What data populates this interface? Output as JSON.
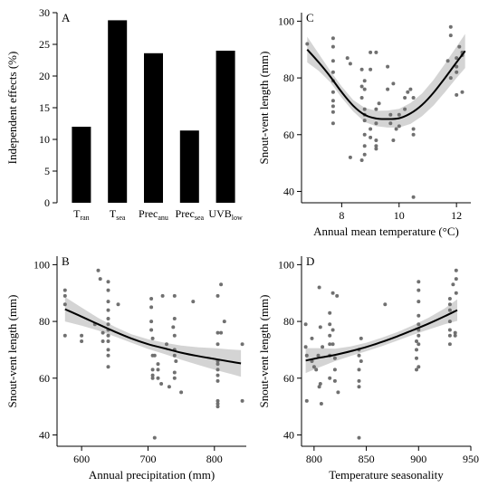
{
  "chart_data": [
    {
      "id": "A",
      "panel_label": "A",
      "type": "bar",
      "ylabel": "Independent effects (%)",
      "ylim": [
        0,
        30
      ],
      "yticks": [
        0,
        5,
        10,
        15,
        20,
        25,
        30
      ],
      "categories": [
        {
          "base": "T",
          "sub": "ran"
        },
        {
          "base": "T",
          "sub": "sea"
        },
        {
          "base": "Prec",
          "sub": "anu"
        },
        {
          "base": "Prec",
          "sub": "sea"
        },
        {
          "base": "UVB",
          "sub": "low"
        }
      ],
      "values": [
        12.0,
        28.8,
        23.6,
        11.4,
        24.0
      ]
    },
    {
      "id": "C",
      "panel_label": "C",
      "type": "scatter",
      "xlabel": "Annual mean temperature (°C)",
      "ylabel": "Snout-vent length (mm)",
      "xlim": [
        6.6,
        12.5
      ],
      "ylim": [
        36,
        103
      ],
      "xticks": [
        8,
        10,
        12
      ],
      "yticks": [
        40,
        60,
        80,
        100
      ],
      "points": [
        [
          6.8,
          92
        ],
        [
          7.7,
          94
        ],
        [
          7.7,
          91
        ],
        [
          7.7,
          86
        ],
        [
          7.7,
          82
        ],
        [
          7.7,
          79
        ],
        [
          7.7,
          75
        ],
        [
          7.7,
          72
        ],
        [
          7.7,
          70
        ],
        [
          7.7,
          68
        ],
        [
          7.7,
          64
        ],
        [
          8.2,
          87
        ],
        [
          8.3,
          85
        ],
        [
          8.3,
          52
        ],
        [
          8.7,
          83
        ],
        [
          8.7,
          77
        ],
        [
          8.7,
          73
        ],
        [
          8.7,
          51
        ],
        [
          8.8,
          79
        ],
        [
          8.8,
          76
        ],
        [
          8.8,
          69
        ],
        [
          8.8,
          67
        ],
        [
          8.8,
          65
        ],
        [
          8.8,
          60
        ],
        [
          8.8,
          56
        ],
        [
          8.8,
          53
        ],
        [
          9.0,
          89
        ],
        [
          9.0,
          83
        ],
        [
          9.0,
          62
        ],
        [
          9.0,
          59
        ],
        [
          9.2,
          89
        ],
        [
          9.2,
          69
        ],
        [
          9.2,
          64
        ],
        [
          9.2,
          58
        ],
        [
          9.2,
          56
        ],
        [
          9.2,
          55
        ],
        [
          9.3,
          71
        ],
        [
          9.6,
          84
        ],
        [
          9.6,
          76
        ],
        [
          9.7,
          67
        ],
        [
          9.7,
          64
        ],
        [
          9.8,
          78
        ],
        [
          9.8,
          58
        ],
        [
          9.9,
          62
        ],
        [
          10.0,
          67
        ],
        [
          10.0,
          63
        ],
        [
          10.2,
          73
        ],
        [
          10.2,
          69
        ],
        [
          10.3,
          75
        ],
        [
          10.4,
          76
        ],
        [
          10.5,
          73
        ],
        [
          10.5,
          62
        ],
        [
          10.5,
          60
        ],
        [
          10.5,
          38
        ],
        [
          11.7,
          86
        ],
        [
          11.8,
          98
        ],
        [
          11.8,
          95
        ],
        [
          11.8,
          80
        ],
        [
          12.0,
          87
        ],
        [
          12.0,
          84
        ],
        [
          12.0,
          82
        ],
        [
          12.0,
          74
        ],
        [
          12.1,
          91
        ],
        [
          12.2,
          89
        ],
        [
          12.2,
          88
        ],
        [
          12.2,
          75
        ]
      ],
      "fit": {
        "x": [
          6.8,
          7.2,
          7.6,
          8.0,
          8.4,
          8.8,
          9.2,
          9.6,
          10.0,
          10.4,
          10.8,
          11.2,
          11.6,
          12.0,
          12.3
        ],
        "y": [
          90.0,
          85.5,
          80.5,
          75.0,
          70.2,
          67.0,
          65.7,
          65.5,
          65.8,
          67.5,
          70.5,
          74.8,
          80.0,
          85.5,
          89.5
        ],
        "lower": [
          85.5,
          82.5,
          78.5,
          73.0,
          68.2,
          64.5,
          63.0,
          62.5,
          62.5,
          63.8,
          66.5,
          70.3,
          75.0,
          80.0,
          83.5
        ],
        "upper": [
          94.5,
          88.5,
          82.5,
          77.0,
          72.2,
          69.5,
          68.4,
          68.5,
          69.1,
          71.2,
          74.5,
          79.3,
          85.0,
          91.0,
          95.5
        ]
      }
    },
    {
      "id": "B",
      "panel_label": "B",
      "type": "scatter",
      "xlabel": "Annual precipitation (mm)",
      "ylabel": "Snout-vent length (mm)",
      "xlim": [
        563,
        848
      ],
      "ylim": [
        36,
        103
      ],
      "xticks": [
        600,
        700,
        800
      ],
      "yticks": [
        40,
        60,
        80,
        100
      ],
      "points": [
        [
          575,
          91
        ],
        [
          575,
          89
        ],
        [
          575,
          86
        ],
        [
          575,
          75
        ],
        [
          600,
          75
        ],
        [
          600,
          73
        ],
        [
          620,
          79
        ],
        [
          625,
          98
        ],
        [
          628,
          95
        ],
        [
          632,
          76
        ],
        [
          632,
          73
        ],
        [
          640,
          94
        ],
        [
          640,
          91
        ],
        [
          640,
          87
        ],
        [
          640,
          84
        ],
        [
          640,
          81
        ],
        [
          640,
          79
        ],
        [
          640,
          77
        ],
        [
          640,
          75
        ],
        [
          640,
          73
        ],
        [
          640,
          70
        ],
        [
          640,
          68
        ],
        [
          640,
          64
        ],
        [
          655,
          86
        ],
        [
          705,
          88
        ],
        [
          705,
          85
        ],
        [
          705,
          80
        ],
        [
          705,
          77
        ],
        [
          707,
          74
        ],
        [
          707,
          68
        ],
        [
          707,
          63
        ],
        [
          707,
          61
        ],
        [
          707,
          60
        ],
        [
          710,
          68
        ],
        [
          710,
          39
        ],
        [
          715,
          65
        ],
        [
          715,
          63
        ],
        [
          715,
          60
        ],
        [
          720,
          58
        ],
        [
          722,
          89
        ],
        [
          728,
          72
        ],
        [
          732,
          57
        ],
        [
          738,
          78
        ],
        [
          740,
          89
        ],
        [
          740,
          81
        ],
        [
          740,
          75
        ],
        [
          740,
          70
        ],
        [
          740,
          68
        ],
        [
          740,
          62
        ],
        [
          740,
          60
        ],
        [
          742,
          66
        ],
        [
          750,
          55
        ],
        [
          768,
          87
        ],
        [
          805,
          89
        ],
        [
          805,
          76
        ],
        [
          805,
          72
        ],
        [
          805,
          66
        ],
        [
          805,
          65
        ],
        [
          805,
          63
        ],
        [
          805,
          61
        ],
        [
          805,
          59
        ],
        [
          805,
          52
        ],
        [
          805,
          51
        ],
        [
          805,
          50
        ],
        [
          810,
          93
        ],
        [
          810,
          76
        ],
        [
          815,
          80
        ],
        [
          842,
          72
        ],
        [
          842,
          52
        ]
      ],
      "fit": {
        "x": [
          575,
          600,
          625,
          650,
          675,
          700,
          725,
          750,
          775,
          800,
          825,
          840
        ],
        "y": [
          84.3,
          81.7,
          79.0,
          76.4,
          74.0,
          72.0,
          70.5,
          69.0,
          67.8,
          66.8,
          65.8,
          65.2
        ],
        "lower": [
          80.0,
          78.5,
          76.8,
          74.7,
          72.5,
          70.3,
          68.5,
          66.5,
          64.7,
          63.0,
          61.5,
          60.5
        ],
        "upper": [
          88.6,
          84.9,
          81.2,
          78.1,
          75.5,
          73.7,
          72.5,
          71.5,
          70.9,
          70.6,
          70.1,
          69.9
        ]
      }
    },
    {
      "id": "D",
      "panel_label": "D",
      "type": "scatter",
      "xlabel": "Temperature seasonality",
      "ylabel": "Snout-vent length (mm)",
      "xlim": [
        788,
        950
      ],
      "ylim": [
        36,
        103
      ],
      "xticks": [
        800,
        850,
        900,
        950
      ],
      "yticks": [
        40,
        60,
        80,
        100
      ],
      "points": [
        [
          792,
          79
        ],
        [
          792,
          71
        ],
        [
          793,
          68
        ],
        [
          793,
          52
        ],
        [
          798,
          74
        ],
        [
          798,
          66
        ],
        [
          800,
          64
        ],
        [
          802,
          63
        ],
        [
          804,
          68
        ],
        [
          805,
          92
        ],
        [
          805,
          57
        ],
        [
          806,
          78
        ],
        [
          806,
          58
        ],
        [
          807,
          51
        ],
        [
          808,
          71
        ],
        [
          815,
          83
        ],
        [
          815,
          79
        ],
        [
          815,
          75
        ],
        [
          815,
          72
        ],
        [
          815,
          68
        ],
        [
          815,
          60
        ],
        [
          818,
          90
        ],
        [
          818,
          77
        ],
        [
          818,
          72
        ],
        [
          820,
          67
        ],
        [
          820,
          63
        ],
        [
          820,
          59
        ],
        [
          822,
          89
        ],
        [
          823,
          55
        ],
        [
          843,
          70
        ],
        [
          843,
          68
        ],
        [
          843,
          63
        ],
        [
          843,
          59
        ],
        [
          843,
          57
        ],
        [
          843,
          39
        ],
        [
          845,
          74
        ],
        [
          845,
          66
        ],
        [
          868,
          86
        ],
        [
          898,
          73
        ],
        [
          898,
          70
        ],
        [
          898,
          67
        ],
        [
          898,
          63
        ],
        [
          900,
          94
        ],
        [
          900,
          91
        ],
        [
          900,
          87
        ],
        [
          900,
          82
        ],
        [
          900,
          79
        ],
        [
          900,
          77
        ],
        [
          900,
          75
        ],
        [
          900,
          72
        ],
        [
          900,
          64
        ],
        [
          930,
          88
        ],
        [
          930,
          86
        ],
        [
          930,
          84
        ],
        [
          930,
          80
        ],
        [
          930,
          77
        ],
        [
          930,
          75
        ],
        [
          930,
          72
        ],
        [
          933,
          93
        ],
        [
          935,
          76
        ],
        [
          935,
          75
        ],
        [
          936,
          98
        ],
        [
          936,
          95
        ],
        [
          936,
          90
        ]
      ],
      "fit": {
        "x": [
          792,
          805,
          820,
          835,
          850,
          865,
          880,
          895,
          910,
          925,
          937
        ],
        "y": [
          66.2,
          67.2,
          68.2,
          69.5,
          71.0,
          72.8,
          74.8,
          77.0,
          79.3,
          81.8,
          84.0
        ],
        "lower": [
          61.8,
          63.8,
          66.0,
          67.8,
          69.5,
          71.3,
          73.3,
          75.3,
          77.2,
          79.0,
          80.2
        ],
        "upper": [
          70.6,
          70.6,
          70.4,
          71.2,
          72.5,
          74.3,
          76.3,
          78.7,
          81.4,
          84.6,
          87.8
        ]
      }
    }
  ]
}
